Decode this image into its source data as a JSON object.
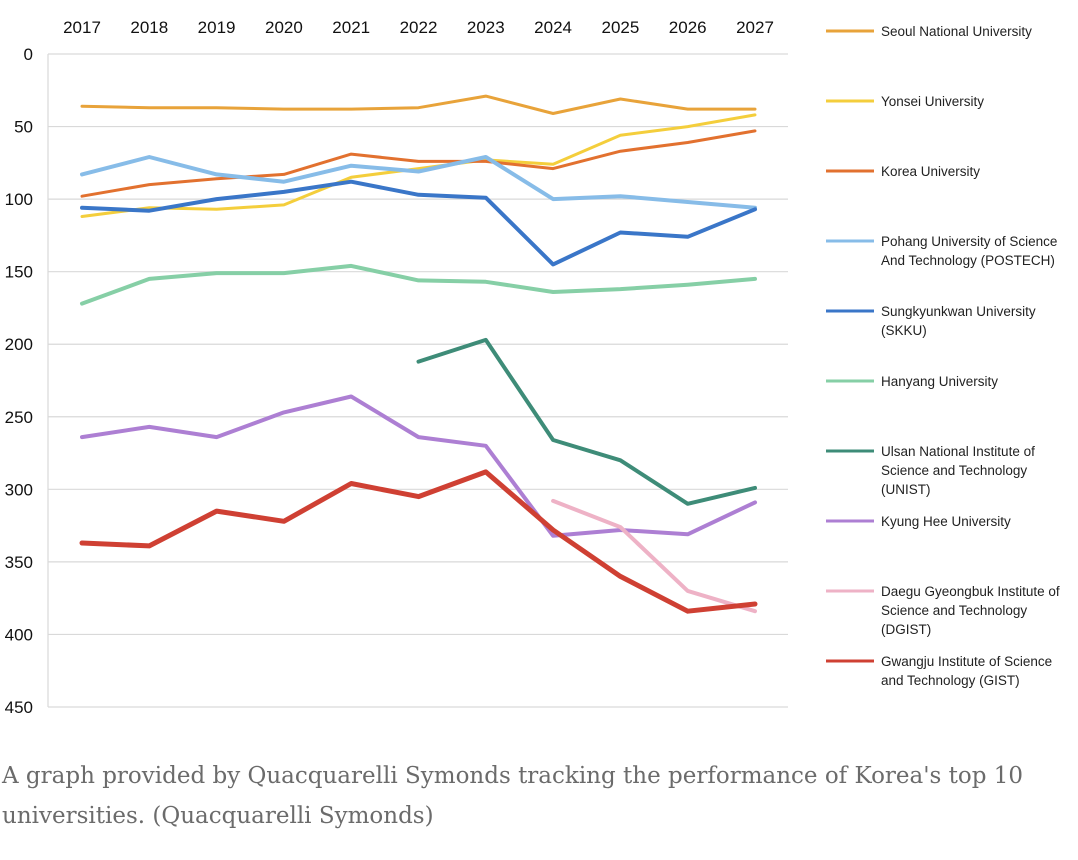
{
  "chart_data": {
    "type": "line",
    "x": [
      "2017",
      "2018",
      "2019",
      "2020",
      "2021",
      "2022",
      "2023",
      "2024",
      "2025",
      "2026",
      "2027"
    ],
    "ylim": [
      0,
      450
    ],
    "y_inverted": true,
    "yticks": [
      0,
      50,
      100,
      150,
      200,
      250,
      300,
      350,
      400,
      450
    ],
    "x_axis_position": "top",
    "grid": "horizontal",
    "legend_position": "right",
    "series": [
      {
        "name": "Seoul National University",
        "color": "#e8a33a",
        "values": [
          36,
          37,
          37,
          38,
          38,
          37,
          29,
          41,
          31,
          38,
          38
        ]
      },
      {
        "name": "Yonsei University",
        "color": "#f4ce3c",
        "values": [
          112,
          106,
          107,
          104,
          85,
          79,
          73,
          76,
          56,
          50,
          42
        ]
      },
      {
        "name": "Korea University",
        "color": "#e2712f",
        "values": [
          98,
          90,
          86,
          83,
          69,
          74,
          74,
          79,
          67,
          61,
          53
        ]
      },
      {
        "name": "Pohang University of Science And Technology (POSTECH)",
        "color": "#87bce8",
        "values": [
          83,
          71,
          83,
          88,
          77,
          81,
          71,
          100,
          98,
          102,
          106
        ]
      },
      {
        "name": "Sungkyunkwan University (SKKU)",
        "color": "#3a76c8",
        "values": [
          106,
          108,
          100,
          95,
          88,
          97,
          99,
          145,
          123,
          126,
          107
        ]
      },
      {
        "name": "Hanyang University",
        "color": "#86cfa6",
        "values": [
          172,
          155,
          151,
          151,
          146,
          156,
          157,
          164,
          162,
          159,
          155
        ]
      },
      {
        "name": "Ulsan National Institute of Science and Technology (UNIST)",
        "color": "#3e8c78",
        "values": [
          null,
          null,
          null,
          null,
          null,
          212,
          197,
          266,
          280,
          310,
          299
        ]
      },
      {
        "name": "Kyung Hee University",
        "color": "#ad7fd3",
        "values": [
          264,
          257,
          264,
          247,
          236,
          264,
          270,
          332,
          328,
          331,
          309
        ]
      },
      {
        "name": "Daegu Gyeongbuk Institute of Science and Technology (DGIST)",
        "color": "#eeb2c6",
        "values": [
          null,
          null,
          null,
          null,
          null,
          null,
          null,
          308,
          326,
          370,
          384
        ]
      },
      {
        "name": "Gwangju Institute of Science and Technology (GIST)",
        "color": "#cf4033",
        "values": [
          337,
          339,
          315,
          322,
          296,
          305,
          288,
          328,
          360,
          384,
          379
        ]
      }
    ]
  },
  "legend_lines": [
    [
      "Seoul National University"
    ],
    [
      "Yonsei University"
    ],
    [
      "Korea University"
    ],
    [
      "Pohang University of Science",
      "And Technology (POSTECH)"
    ],
    [
      "Sungkyunkwan University",
      "(SKKU)"
    ],
    [
      "Hanyang University"
    ],
    [
      "Ulsan National Institute of",
      "Science and Technology",
      "(UNIST)"
    ],
    [
      "Kyung Hee University"
    ],
    [
      "Daegu Gyeongbuk Institute of",
      "Science and Technology",
      "(DGIST)"
    ],
    [
      "Gwangju Institute of Science",
      "and Technology (GIST)"
    ]
  ],
  "caption": "A graph provided by Quacquarelli Symonds tracking the performance of Korea's top 10 universities. (Quacquarelli Symonds)"
}
